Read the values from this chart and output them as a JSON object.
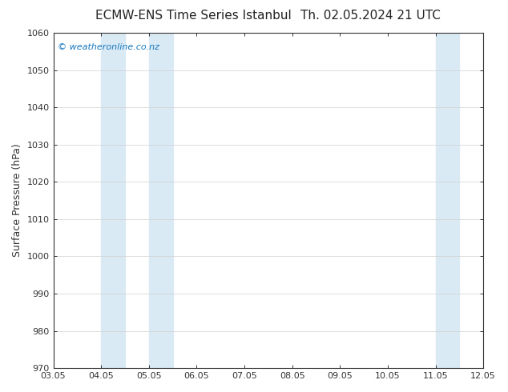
{
  "title_left": "ECMW-ENS Time Series Istanbul",
  "title_right": "Th. 02.05.2024 21 UTC",
  "ylabel": "Surface Pressure (hPa)",
  "background_color": "#ffffff",
  "plot_bg_color": "#ffffff",
  "ylim": [
    970,
    1060
  ],
  "yticks": [
    970,
    980,
    990,
    1000,
    1010,
    1020,
    1030,
    1040,
    1050,
    1060
  ],
  "xtick_labels": [
    "03.05",
    "04.05",
    "05.05",
    "06.05",
    "07.05",
    "08.05",
    "09.05",
    "10.05",
    "11.05",
    "12.05"
  ],
  "n_ticks": 10,
  "shaded_color": "#daeaf5",
  "shaded_intervals": [
    [
      1.0,
      1.5
    ],
    [
      2.0,
      2.5
    ],
    [
      8.0,
      8.5
    ],
    [
      9.0,
      9.5
    ],
    [
      9.85,
      10.0
    ]
  ],
  "watermark_text": "© weatheronline.co.nz",
  "watermark_color": "#1777be",
  "title_fontsize": 11,
  "tick_fontsize": 8,
  "ylabel_fontsize": 9,
  "grid_color": "#d0d0d0",
  "tick_color": "#333333",
  "spine_color": "#333333"
}
